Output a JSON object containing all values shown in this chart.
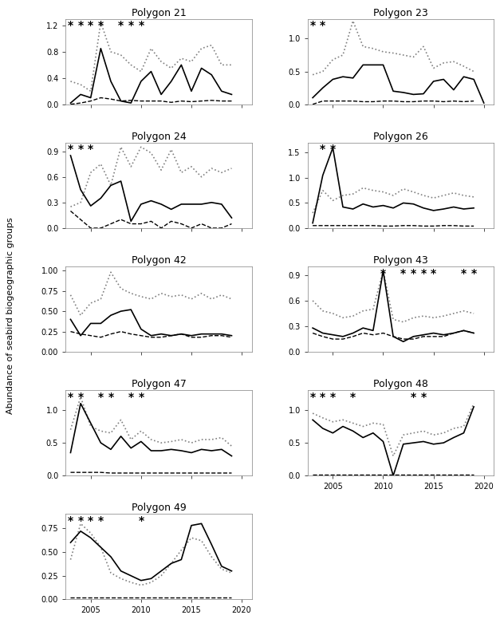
{
  "years": [
    2003,
    2004,
    2005,
    2006,
    2007,
    2008,
    2009,
    2010,
    2011,
    2012,
    2013,
    2014,
    2015,
    2016,
    2017,
    2018,
    2019,
    2020
  ],
  "polygons": {
    "Polygon 21": {
      "arctic": [
        0.02,
        0.15,
        0.1,
        0.85,
        0.35,
        0.05,
        0.02,
        0.35,
        0.5,
        0.15,
        0.35,
        0.6,
        0.2,
        0.55,
        0.45,
        0.2,
        0.15,
        null
      ],
      "arctoboreal": [
        0.35,
        0.3,
        0.2,
        1.25,
        0.8,
        0.75,
        0.6,
        0.5,
        0.85,
        0.65,
        0.55,
        0.7,
        0.65,
        0.85,
        0.9,
        0.6,
        0.6,
        null
      ],
      "boreal": [
        0.0,
        0.02,
        0.05,
        0.1,
        0.08,
        0.05,
        0.06,
        0.05,
        0.05,
        0.05,
        0.03,
        0.05,
        0.04,
        0.05,
        0.06,
        0.05,
        0.05,
        null
      ],
      "low_sample": [
        2003,
        2004,
        2005,
        2006,
        2008,
        2009,
        2010
      ],
      "ylim": [
        0,
        1.3
      ],
      "yticks": [
        0.0,
        0.4,
        0.8,
        1.2
      ]
    },
    "Polygon 23": {
      "arctic": [
        0.1,
        0.25,
        0.38,
        0.42,
        0.4,
        0.6,
        0.6,
        0.6,
        0.2,
        0.18,
        0.15,
        0.16,
        0.35,
        0.38,
        0.22,
        0.42,
        0.38,
        0.02
      ],
      "arctoboreal": [
        0.45,
        0.5,
        0.68,
        0.75,
        1.27,
        0.88,
        0.85,
        0.8,
        0.78,
        0.75,
        0.72,
        0.88,
        0.55,
        0.63,
        0.65,
        0.58,
        0.5,
        null
      ],
      "boreal": [
        0.0,
        0.05,
        0.05,
        0.05,
        0.05,
        0.04,
        0.04,
        0.05,
        0.05,
        0.04,
        0.04,
        0.05,
        0.05,
        0.04,
        0.05,
        0.04,
        0.05,
        null
      ],
      "low_sample": [
        2003,
        2004
      ],
      "ylim": [
        0,
        1.3
      ],
      "yticks": [
        0.0,
        0.5,
        1.0
      ]
    },
    "Polygon 24": {
      "arctic": [
        0.85,
        0.45,
        0.26,
        0.35,
        0.5,
        0.55,
        0.08,
        0.28,
        0.32,
        0.28,
        0.22,
        0.28,
        0.28,
        0.28,
        0.3,
        0.28,
        0.12,
        null
      ],
      "arctoboreal": [
        0.25,
        0.3,
        0.65,
        0.75,
        0.5,
        0.95,
        0.72,
        0.95,
        0.88,
        0.68,
        0.92,
        0.65,
        0.72,
        0.6,
        0.7,
        0.65,
        0.7,
        null
      ],
      "boreal": [
        0.2,
        0.1,
        0.0,
        0.0,
        0.05,
        0.1,
        0.05,
        0.05,
        0.08,
        0.0,
        0.08,
        0.05,
        0.0,
        0.05,
        0.0,
        0.0,
        0.05,
        null
      ],
      "low_sample": [
        2003,
        2004,
        2005
      ],
      "ylim": [
        0,
        1.0
      ],
      "yticks": [
        0.0,
        0.3,
        0.6,
        0.9
      ]
    },
    "Polygon 26": {
      "arctic": [
        0.1,
        1.05,
        1.6,
        0.42,
        0.38,
        0.48,
        0.42,
        0.45,
        0.4,
        0.5,
        0.48,
        0.4,
        0.35,
        0.38,
        0.42,
        0.38,
        0.4,
        null
      ],
      "arctoboreal": [
        0.3,
        0.75,
        0.55,
        0.65,
        0.68,
        0.8,
        0.75,
        0.72,
        0.65,
        0.78,
        0.72,
        0.65,
        0.6,
        0.65,
        0.7,
        0.65,
        0.62,
        null
      ],
      "boreal": [
        0.05,
        0.05,
        0.05,
        0.05,
        0.05,
        0.05,
        0.05,
        0.04,
        0.04,
        0.05,
        0.05,
        0.04,
        0.04,
        0.05,
        0.05,
        0.04,
        0.04,
        null
      ],
      "low_sample": [
        2004,
        2005
      ],
      "ylim": [
        0,
        1.7
      ],
      "yticks": [
        0.0,
        0.5,
        1.0,
        1.5
      ]
    },
    "Polygon 42": {
      "arctic": [
        0.4,
        0.2,
        0.35,
        0.35,
        0.45,
        0.5,
        0.52,
        0.28,
        0.2,
        0.22,
        0.2,
        0.22,
        0.2,
        0.22,
        0.22,
        0.22,
        0.2,
        null
      ],
      "arctoboreal": [
        0.7,
        0.45,
        0.6,
        0.65,
        0.98,
        0.78,
        0.72,
        0.68,
        0.65,
        0.72,
        0.68,
        0.7,
        0.65,
        0.72,
        0.65,
        0.7,
        0.65,
        null
      ],
      "boreal": [
        0.25,
        0.22,
        0.2,
        0.18,
        0.22,
        0.25,
        0.22,
        0.2,
        0.18,
        0.18,
        0.2,
        0.22,
        0.18,
        0.18,
        0.2,
        0.2,
        0.18,
        null
      ],
      "low_sample": [],
      "ylim": [
        0,
        1.05
      ],
      "yticks": [
        0.0,
        0.25,
        0.5,
        0.75,
        1.0
      ]
    },
    "Polygon 43": {
      "arctic": [
        0.28,
        0.22,
        0.2,
        0.18,
        0.22,
        0.28,
        0.25,
        0.95,
        0.18,
        0.12,
        0.18,
        0.2,
        0.22,
        0.2,
        0.22,
        0.25,
        0.22,
        null
      ],
      "arctoboreal": [
        0.6,
        0.48,
        0.45,
        0.4,
        0.42,
        0.48,
        0.5,
        0.95,
        0.38,
        0.35,
        0.4,
        0.42,
        0.4,
        0.42,
        0.45,
        0.48,
        0.45,
        null
      ],
      "boreal": [
        0.22,
        0.18,
        0.15,
        0.15,
        0.18,
        0.22,
        0.2,
        0.22,
        0.18,
        0.15,
        0.15,
        0.18,
        0.18,
        0.18,
        0.22,
        0.25,
        0.22,
        null
      ],
      "low_sample": [
        2010,
        2012,
        2013,
        2014,
        2015,
        2018,
        2019
      ],
      "ylim": [
        0,
        1.0
      ],
      "yticks": [
        0.0,
        0.3,
        0.6,
        0.9
      ]
    },
    "Polygon 47": {
      "arctic": [
        0.35,
        1.1,
        0.8,
        0.5,
        0.4,
        0.6,
        0.42,
        0.52,
        0.38,
        0.38,
        0.4,
        0.38,
        0.35,
        0.4,
        0.38,
        0.4,
        0.3,
        null
      ],
      "arctoboreal": [
        0.7,
        1.2,
        0.75,
        0.68,
        0.65,
        0.85,
        0.55,
        0.68,
        0.55,
        0.5,
        0.52,
        0.55,
        0.5,
        0.55,
        0.55,
        0.58,
        0.45,
        null
      ],
      "boreal": [
        0.05,
        0.05,
        0.05,
        0.05,
        0.04,
        0.04,
        0.04,
        0.04,
        0.04,
        0.04,
        0.04,
        0.04,
        0.04,
        0.04,
        0.04,
        0.04,
        0.04,
        null
      ],
      "low_sample": [
        2003,
        2004,
        2006,
        2007,
        2009,
        2010
      ],
      "ylim": [
        0,
        1.3
      ],
      "yticks": [
        0.0,
        0.5,
        1.0
      ]
    },
    "Polygon 48": {
      "arctic": [
        0.85,
        0.72,
        0.65,
        0.75,
        0.68,
        0.58,
        0.65,
        0.52,
        0.0,
        0.48,
        0.5,
        0.52,
        0.48,
        0.5,
        0.58,
        0.65,
        1.05,
        null
      ],
      "arctoboreal": [
        0.95,
        0.88,
        0.82,
        0.85,
        0.8,
        0.75,
        0.8,
        0.78,
        0.3,
        0.62,
        0.65,
        0.68,
        0.62,
        0.65,
        0.72,
        0.75,
        1.1,
        null
      ],
      "boreal": [
        0.02,
        0.02,
        0.02,
        0.02,
        0.02,
        0.02,
        0.02,
        0.02,
        0.02,
        0.02,
        0.02,
        0.02,
        0.02,
        0.02,
        0.02,
        0.02,
        0.02,
        null
      ],
      "low_sample": [
        2003,
        2004,
        2005,
        2007,
        2013,
        2014
      ],
      "ylim": [
        0,
        1.3
      ],
      "yticks": [
        0.0,
        0.5,
        1.0
      ]
    },
    "Polygon 49": {
      "arctic": [
        0.6,
        0.72,
        0.65,
        0.55,
        0.45,
        0.3,
        0.25,
        0.2,
        0.22,
        0.3,
        0.38,
        0.42,
        0.78,
        0.8,
        0.58,
        0.35,
        0.3,
        null
      ],
      "arctoboreal": [
        0.42,
        0.8,
        0.7,
        0.55,
        0.28,
        0.22,
        0.18,
        0.15,
        0.18,
        0.25,
        0.38,
        0.52,
        0.65,
        0.62,
        0.45,
        0.32,
        0.28,
        null
      ],
      "boreal": [
        0.02,
        0.02,
        0.02,
        0.02,
        0.02,
        0.02,
        0.02,
        0.02,
        0.02,
        0.02,
        0.02,
        0.02,
        0.02,
        0.02,
        0.02,
        0.02,
        0.02,
        null
      ],
      "low_sample": [
        2003,
        2004,
        2005,
        2006,
        2010
      ],
      "ylim": [
        0,
        0.9
      ],
      "yticks": [
        0.0,
        0.25,
        0.5,
        0.75
      ]
    }
  },
  "ylabel": "Abundance of seabird biogeographic groups",
  "xlabel_left": "2005            2010            2015            2020",
  "xlabel_right": "2005            2010            2015            2020",
  "grid_layout": [
    [
      "Polygon 21",
      "Polygon 23"
    ],
    [
      "Polygon 24",
      "Polygon 26"
    ],
    [
      "Polygon 42",
      "Polygon 43"
    ],
    [
      "Polygon 47",
      "Polygon 48"
    ],
    [
      "Polygon 49",
      null
    ]
  ]
}
